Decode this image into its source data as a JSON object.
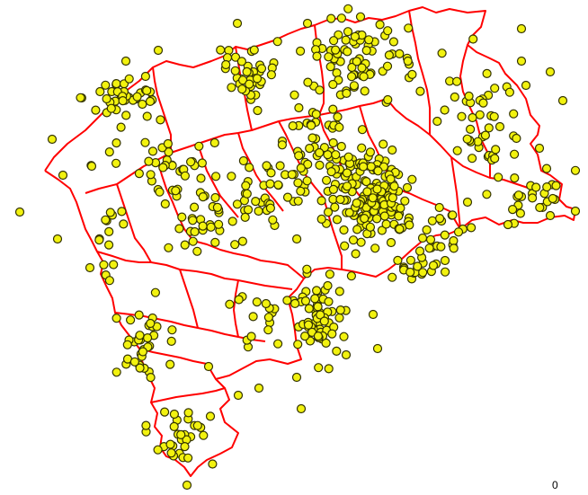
{
  "map": {
    "scale_label": "0",
    "boundary_color": "#ff0000",
    "point_fill_color": "#f2f20f",
    "point_stroke_color": "#333300",
    "background_color": "#ffffff",
    "layers": [
      "administrative-boundaries",
      "point-locations"
    ]
  }
}
